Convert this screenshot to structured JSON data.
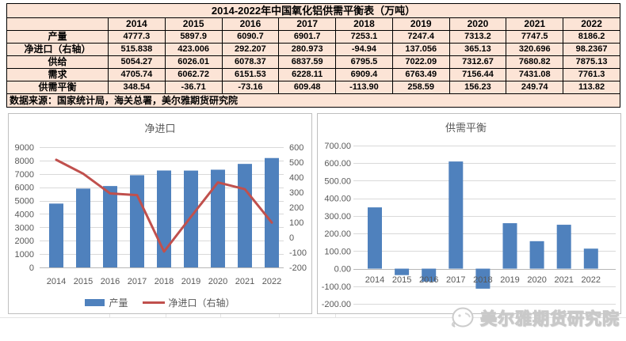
{
  "colors": {
    "table_fill": "#fce4d6",
    "table_border": "#000000",
    "bar_blue": "#4f81bd",
    "line_red": "#c0504d",
    "grid_line": "#d9d9d9",
    "axis_line": "#b7b7b7",
    "axis_text": "#595959",
    "chart_border": "#bfbfbf",
    "watermark_gray": "#c9c9c9"
  },
  "table": {
    "title": "2014-2022年中国氧化铝供需平衡表（万吨）",
    "corner": "",
    "years": [
      "2014",
      "2015",
      "2016",
      "2017",
      "2018",
      "2019",
      "2020",
      "2021",
      "2022"
    ],
    "rows": [
      {
        "label": "产量",
        "values": [
          "4777.3",
          "5897.9",
          "6090.7",
          "6901.7",
          "7253.1",
          "7247.4",
          "7313.2",
          "7747.5",
          "8186.2"
        ]
      },
      {
        "label": "净进口（右轴）",
        "values": [
          "515.838",
          "423.006",
          "292.207",
          "280.973",
          "-94.94",
          "137.056",
          "365.13",
          "320.696",
          "98.2367"
        ]
      },
      {
        "label": "供给",
        "values": [
          "5054.27",
          "6026.01",
          "6078.37",
          "6837.59",
          "6795.5",
          "7022.09",
          "7312.67",
          "7680.82",
          "7875.13"
        ]
      },
      {
        "label": "需求",
        "values": [
          "4705.74",
          "6062.72",
          "6151.53",
          "6228.11",
          "6909.4",
          "6763.49",
          "7156.44",
          "7431.08",
          "7761.3"
        ]
      },
      {
        "label": "供需平衡",
        "values": [
          "348.54",
          "-36.71",
          "-73.16",
          "609.48",
          "-113.90",
          "258.59",
          "156.23",
          "249.74",
          "113.82"
        ]
      }
    ],
    "source": "数据来源：国家统计局，海关总署，美尔雅期货研究院"
  },
  "watermark": {
    "text": "美尔雅期货研究院"
  },
  "chart_data": [
    {
      "type": "bar",
      "title": "净进口",
      "categories": [
        "2014",
        "2015",
        "2016",
        "2017",
        "2018",
        "2019",
        "2020",
        "2021",
        "2022"
      ],
      "series": [
        {
          "name": "产量",
          "type": "bar",
          "axis": "left",
          "values": [
            4777.3,
            5897.9,
            6090.7,
            6901.7,
            7253.1,
            7247.4,
            7313.2,
            7747.5,
            8186.2
          ]
        },
        {
          "name": "净进口（右轴）",
          "type": "line",
          "axis": "right",
          "values": [
            515.838,
            423.006,
            292.207,
            280.973,
            -94.94,
            137.056,
            365.13,
            320.696,
            98.2367
          ]
        }
      ],
      "left_axis": {
        "min": 0,
        "max": 9000,
        "step": 1000,
        "decimals": 0
      },
      "right_axis": {
        "min": -200,
        "max": 600,
        "step": 100,
        "decimals": 0
      },
      "grid": true,
      "legend_position": "bottom"
    },
    {
      "type": "bar",
      "title": "供需平衡",
      "categories": [
        "2014",
        "2015",
        "2016",
        "2017",
        "2018",
        "2019",
        "2020",
        "2021",
        "2022"
      ],
      "series": [
        {
          "name": "供需平衡",
          "type": "bar",
          "axis": "left",
          "values": [
            348.54,
            -36.71,
            -73.16,
            609.48,
            -113.9,
            258.59,
            156.23,
            249.74,
            113.82
          ]
        }
      ],
      "left_axis": {
        "min": -200,
        "max": 700,
        "step": 100,
        "decimals": 2
      },
      "grid": true,
      "legend_position": "none"
    }
  ]
}
